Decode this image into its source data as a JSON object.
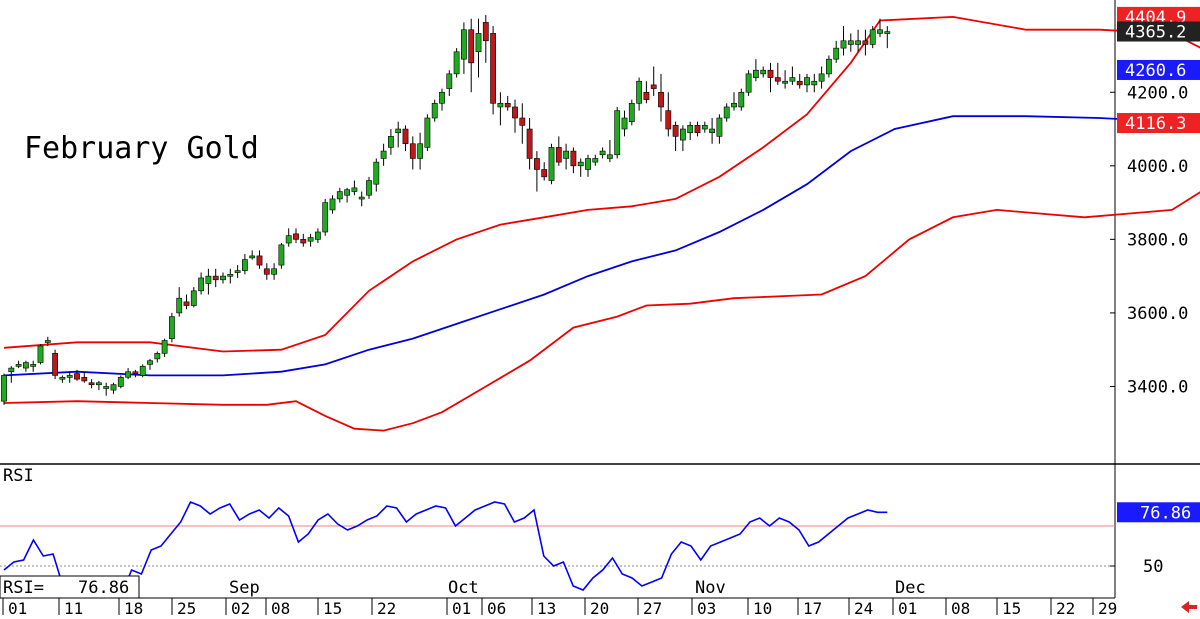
{
  "chart_data": {
    "type": "candlestick",
    "title": "February Gold",
    "colors": {
      "up_body": "#1faa1f",
      "down_body": "#c01818",
      "wick": "#000000",
      "upper_band": "#ee0000",
      "middle_band": "#0000dd",
      "lower_band": "#ee0000",
      "rsi_line": "#0000ff",
      "tag_red": "#ee2222",
      "tag_black": "#222222",
      "tag_blue": "#1a1aff"
    },
    "price_axis": {
      "ylim": [
        3200,
        4440
      ],
      "ticks": [
        "4200.0",
        "4000.0",
        "3800.0",
        "3600.0",
        "3400.0"
      ],
      "tick_values": [
        4200,
        4000,
        3800,
        3600,
        3400
      ]
    },
    "price_tags": {
      "upper": "4404.9",
      "last": "4365.2",
      "middle": "4260.6",
      "lower": "4116.3"
    },
    "months": [
      "Sep",
      "Oct",
      "Nov",
      "Dec"
    ],
    "date_labels": [
      "01",
      "11",
      "18",
      "25",
      "02",
      "08",
      "15",
      "22",
      "01",
      "06",
      "13",
      "20",
      "27",
      "03",
      "10",
      "17",
      "24",
      "01",
      "08",
      "15",
      "22",
      "29"
    ],
    "candles": [
      [
        3360,
        3435,
        3350,
        3430
      ],
      [
        3440,
        3455,
        3410,
        3450
      ],
      [
        3455,
        3470,
        3450,
        3460
      ],
      [
        3450,
        3470,
        3440,
        3465
      ],
      [
        3455,
        3470,
        3440,
        3460
      ],
      [
        3465,
        3515,
        3460,
        3510
      ],
      [
        3520,
        3535,
        3510,
        3525
      ],
      [
        3490,
        3500,
        3420,
        3430
      ],
      [
        3420,
        3430,
        3410,
        3425
      ],
      [
        3425,
        3440,
        3410,
        3430
      ],
      [
        3435,
        3445,
        3415,
        3420
      ],
      [
        3425,
        3440,
        3410,
        3415
      ],
      [
        3410,
        3420,
        3395,
        3405
      ],
      [
        3405,
        3415,
        3390,
        3410
      ],
      [
        3395,
        3410,
        3375,
        3400
      ],
      [
        3390,
        3410,
        3380,
        3405
      ],
      [
        3400,
        3430,
        3395,
        3425
      ],
      [
        3425,
        3450,
        3420,
        3440
      ],
      [
        3440,
        3445,
        3425,
        3435
      ],
      [
        3430,
        3460,
        3425,
        3455
      ],
      [
        3460,
        3475,
        3445,
        3470
      ],
      [
        3475,
        3495,
        3465,
        3490
      ],
      [
        3490,
        3530,
        3480,
        3525
      ],
      [
        3530,
        3600,
        3520,
        3590
      ],
      [
        3600,
        3670,
        3590,
        3640
      ],
      [
        3630,
        3650,
        3610,
        3620
      ],
      [
        3620,
        3670,
        3615,
        3660
      ],
      [
        3660,
        3710,
        3650,
        3695
      ],
      [
        3680,
        3720,
        3650,
        3700
      ],
      [
        3700,
        3720,
        3670,
        3690
      ],
      [
        3690,
        3710,
        3680,
        3700
      ],
      [
        3700,
        3720,
        3680,
        3705
      ],
      [
        3710,
        3730,
        3695,
        3715
      ],
      [
        3715,
        3760,
        3705,
        3745
      ],
      [
        3750,
        3770,
        3745,
        3755
      ],
      [
        3755,
        3770,
        3720,
        3730
      ],
      [
        3720,
        3735,
        3690,
        3705
      ],
      [
        3705,
        3735,
        3690,
        3720
      ],
      [
        3730,
        3790,
        3720,
        3785
      ],
      [
        3790,
        3830,
        3780,
        3810
      ],
      [
        3815,
        3830,
        3790,
        3800
      ],
      [
        3800,
        3815,
        3780,
        3790
      ],
      [
        3795,
        3815,
        3780,
        3805
      ],
      [
        3800,
        3830,
        3790,
        3820
      ],
      [
        3820,
        3910,
        3810,
        3900
      ],
      [
        3880,
        3920,
        3870,
        3910
      ],
      [
        3910,
        3940,
        3900,
        3930
      ],
      [
        3920,
        3940,
        3900,
        3935
      ],
      [
        3930,
        3960,
        3920,
        3940
      ],
      [
        3910,
        3930,
        3890,
        3915
      ],
      [
        3920,
        3970,
        3910,
        3960
      ],
      [
        3950,
        4020,
        3930,
        4010
      ],
      [
        4020,
        4060,
        4000,
        4040
      ],
      [
        4050,
        4100,
        4030,
        4080
      ],
      [
        4090,
        4120,
        4050,
        4100
      ],
      [
        4100,
        4110,
        4040,
        4060
      ],
      [
        4060,
        4080,
        3990,
        4020
      ],
      [
        4020,
        4090,
        3990,
        4060
      ],
      [
        4050,
        4140,
        4040,
        4130
      ],
      [
        4130,
        4180,
        4120,
        4170
      ],
      [
        4170,
        4210,
        4150,
        4200
      ],
      [
        4210,
        4260,
        4190,
        4250
      ],
      [
        4250,
        4320,
        4240,
        4310
      ],
      [
        4290,
        4390,
        4250,
        4370
      ],
      [
        4370,
        4400,
        4200,
        4280
      ],
      [
        4310,
        4400,
        4240,
        4360
      ],
      [
        4390,
        4410,
        4280,
        4340
      ],
      [
        4360,
        4380,
        4140,
        4170
      ],
      [
        4160,
        4200,
        4110,
        4170
      ],
      [
        4170,
        4190,
        4150,
        4160
      ],
      [
        4160,
        4180,
        4090,
        4130
      ],
      [
        4130,
        4170,
        4060,
        4110
      ],
      [
        4100,
        4130,
        3990,
        4020
      ],
      [
        4020,
        4040,
        3930,
        3990
      ],
      [
        3990,
        4010,
        3960,
        3970
      ],
      [
        3960,
        4060,
        3950,
        4050
      ],
      [
        4050,
        4080,
        4000,
        4010
      ],
      [
        4020,
        4060,
        3990,
        4040
      ],
      [
        4040,
        4050,
        3980,
        4000
      ],
      [
        4000,
        4020,
        3970,
        4010
      ],
      [
        3990,
        4030,
        3970,
        4020
      ],
      [
        4010,
        4030,
        4000,
        4020
      ],
      [
        4030,
        4050,
        4020,
        4040
      ],
      [
        4020,
        4070,
        4010,
        4030
      ],
      [
        4030,
        4160,
        4020,
        4150
      ],
      [
        4100,
        4150,
        4080,
        4130
      ],
      [
        4120,
        4180,
        4110,
        4170
      ],
      [
        4170,
        4240,
        4150,
        4230
      ],
      [
        4200,
        4230,
        4170,
        4180
      ],
      [
        4220,
        4270,
        4190,
        4210
      ],
      [
        4200,
        4250,
        4120,
        4160
      ],
      [
        4150,
        4200,
        4080,
        4100
      ],
      [
        4110,
        4120,
        4040,
        4080
      ],
      [
        4070,
        4110,
        4040,
        4100
      ],
      [
        4090,
        4120,
        4070,
        4110
      ],
      [
        4110,
        4120,
        4080,
        4090
      ],
      [
        4100,
        4120,
        4090,
        4110
      ],
      [
        4090,
        4130,
        4060,
        4100
      ],
      [
        4080,
        4140,
        4060,
        4130
      ],
      [
        4130,
        4170,
        4120,
        4160
      ],
      [
        4160,
        4200,
        4150,
        4170
      ],
      [
        4160,
        4210,
        4150,
        4200
      ],
      [
        4200,
        4260,
        4190,
        4250
      ],
      [
        4240,
        4290,
        4230,
        4260
      ],
      [
        4250,
        4270,
        4240,
        4260
      ],
      [
        4260,
        4280,
        4200,
        4240
      ],
      [
        4240,
        4280,
        4220,
        4230
      ],
      [
        4230,
        4260,
        4210,
        4230
      ],
      [
        4230,
        4270,
        4220,
        4240
      ],
      [
        4230,
        4250,
        4210,
        4220
      ],
      [
        4220,
        4250,
        4200,
        4240
      ],
      [
        4220,
        4250,
        4200,
        4230
      ],
      [
        4230,
        4270,
        4210,
        4250
      ],
      [
        4250,
        4300,
        4240,
        4290
      ],
      [
        4290,
        4340,
        4280,
        4320
      ],
      [
        4320,
        4380,
        4300,
        4340
      ],
      [
        4330,
        4360,
        4310,
        4340
      ],
      [
        4330,
        4370,
        4310,
        4340
      ],
      [
        4340,
        4370,
        4300,
        4330
      ],
      [
        4330,
        4380,
        4320,
        4370
      ],
      [
        4360,
        4400,
        4350,
        4370
      ],
      [
        4360,
        4380,
        4320,
        4365
      ]
    ],
    "bollinger": {
      "upper_points": [
        [
          0,
          3505
        ],
        [
          10,
          3520
        ],
        [
          20,
          3520
        ],
        [
          30,
          3495
        ],
        [
          38,
          3500
        ],
        [
          44,
          3540
        ],
        [
          50,
          3660
        ],
        [
          56,
          3740
        ],
        [
          62,
          3800
        ],
        [
          68,
          3840
        ],
        [
          74,
          3860
        ],
        [
          80,
          3880
        ],
        [
          86,
          3890
        ],
        [
          92,
          3910
        ],
        [
          98,
          3970
        ],
        [
          104,
          4050
        ],
        [
          110,
          4140
        ],
        [
          116,
          4280
        ],
        [
          120,
          4395
        ],
        [
          130,
          4405
        ],
        [
          140,
          4370
        ],
        [
          150,
          4370
        ],
        [
          160,
          4360
        ],
        [
          166,
          4300
        ],
        [
          170,
          4240
        ],
        [
          176,
          4225
        ],
        [
          182,
          4255
        ],
        [
          188,
          4280
        ],
        [
          194,
          4265
        ],
        [
          200,
          4270
        ],
        [
          206,
          4305
        ],
        [
          212,
          4355
        ],
        [
          218,
          4385
        ],
        [
          224,
          4404.9
        ]
      ],
      "middle_points": [
        [
          0,
          3430
        ],
        [
          10,
          3440
        ],
        [
          20,
          3430
        ],
        [
          30,
          3430
        ],
        [
          38,
          3440
        ],
        [
          44,
          3460
        ],
        [
          50,
          3500
        ],
        [
          56,
          3530
        ],
        [
          62,
          3570
        ],
        [
          68,
          3610
        ],
        [
          74,
          3650
        ],
        [
          80,
          3700
        ],
        [
          86,
          3740
        ],
        [
          92,
          3770
        ],
        [
          98,
          3820
        ],
        [
          104,
          3880
        ],
        [
          110,
          3950
        ],
        [
          116,
          4040
        ],
        [
          122,
          4100
        ],
        [
          130,
          4135
        ],
        [
          140,
          4135
        ],
        [
          150,
          4130
        ],
        [
          160,
          4120
        ],
        [
          166,
          4090
        ],
        [
          170,
          4085
        ],
        [
          176,
          4090
        ],
        [
          182,
          4120
        ],
        [
          188,
          4150
        ],
        [
          194,
          4170
        ],
        [
          200,
          4185
        ],
        [
          206,
          4195
        ],
        [
          212,
          4210
        ],
        [
          218,
          4235
        ],
        [
          224,
          4260.6
        ]
      ],
      "lower_points": [
        [
          0,
          3355
        ],
        [
          10,
          3360
        ],
        [
          20,
          3355
        ],
        [
          30,
          3350
        ],
        [
          36,
          3350
        ],
        [
          40,
          3360
        ],
        [
          44,
          3320
        ],
        [
          48,
          3285
        ],
        [
          52,
          3280
        ],
        [
          56,
          3300
        ],
        [
          60,
          3330
        ],
        [
          66,
          3400
        ],
        [
          72,
          3470
        ],
        [
          78,
          3560
        ],
        [
          84,
          3590
        ],
        [
          88,
          3620
        ],
        [
          94,
          3625
        ],
        [
          100,
          3640
        ],
        [
          106,
          3645
        ],
        [
          112,
          3650
        ],
        [
          118,
          3700
        ],
        [
          124,
          3800
        ],
        [
          130,
          3860
        ],
        [
          136,
          3880
        ],
        [
          142,
          3870
        ],
        [
          148,
          3860
        ],
        [
          154,
          3870
        ],
        [
          160,
          3880
        ],
        [
          164,
          3930
        ],
        [
          170,
          3935
        ],
        [
          176,
          3940
        ],
        [
          182,
          3960
        ],
        [
          188,
          3990
        ],
        [
          194,
          4020
        ],
        [
          200,
          4070
        ],
        [
          206,
          4075
        ],
        [
          212,
          4060
        ],
        [
          218,
          4085
        ],
        [
          224,
          4116.3
        ]
      ]
    },
    "rsi": {
      "label": "RSI",
      "readout_label": "RSI=",
      "readout_value": "76.86",
      "tag_value": "76.86",
      "ylim": [
        35,
        100
      ],
      "overbought": 70,
      "oversold_line": 50,
      "tick": "50",
      "values": [
        48,
        52,
        53,
        63,
        55,
        56,
        40,
        44,
        39,
        38,
        39,
        40,
        36,
        48,
        46,
        58,
        60,
        66,
        72,
        82,
        80,
        76,
        79,
        81,
        73,
        76,
        78,
        74,
        79,
        75,
        62,
        66,
        73,
        76,
        71,
        68,
        70,
        73,
        75,
        80,
        79,
        72,
        76,
        78,
        80,
        79,
        70,
        74,
        78,
        80,
        82,
        81,
        72,
        74,
        78,
        55,
        50,
        52,
        40,
        38,
        44,
        48,
        54,
        46,
        44,
        40,
        42,
        44,
        56,
        62,
        60,
        53,
        60,
        62,
        64,
        66,
        72,
        74,
        70,
        74,
        72,
        68,
        60,
        62,
        66,
        70,
        74,
        76,
        78,
        76.86,
        76.86
      ]
    }
  }
}
